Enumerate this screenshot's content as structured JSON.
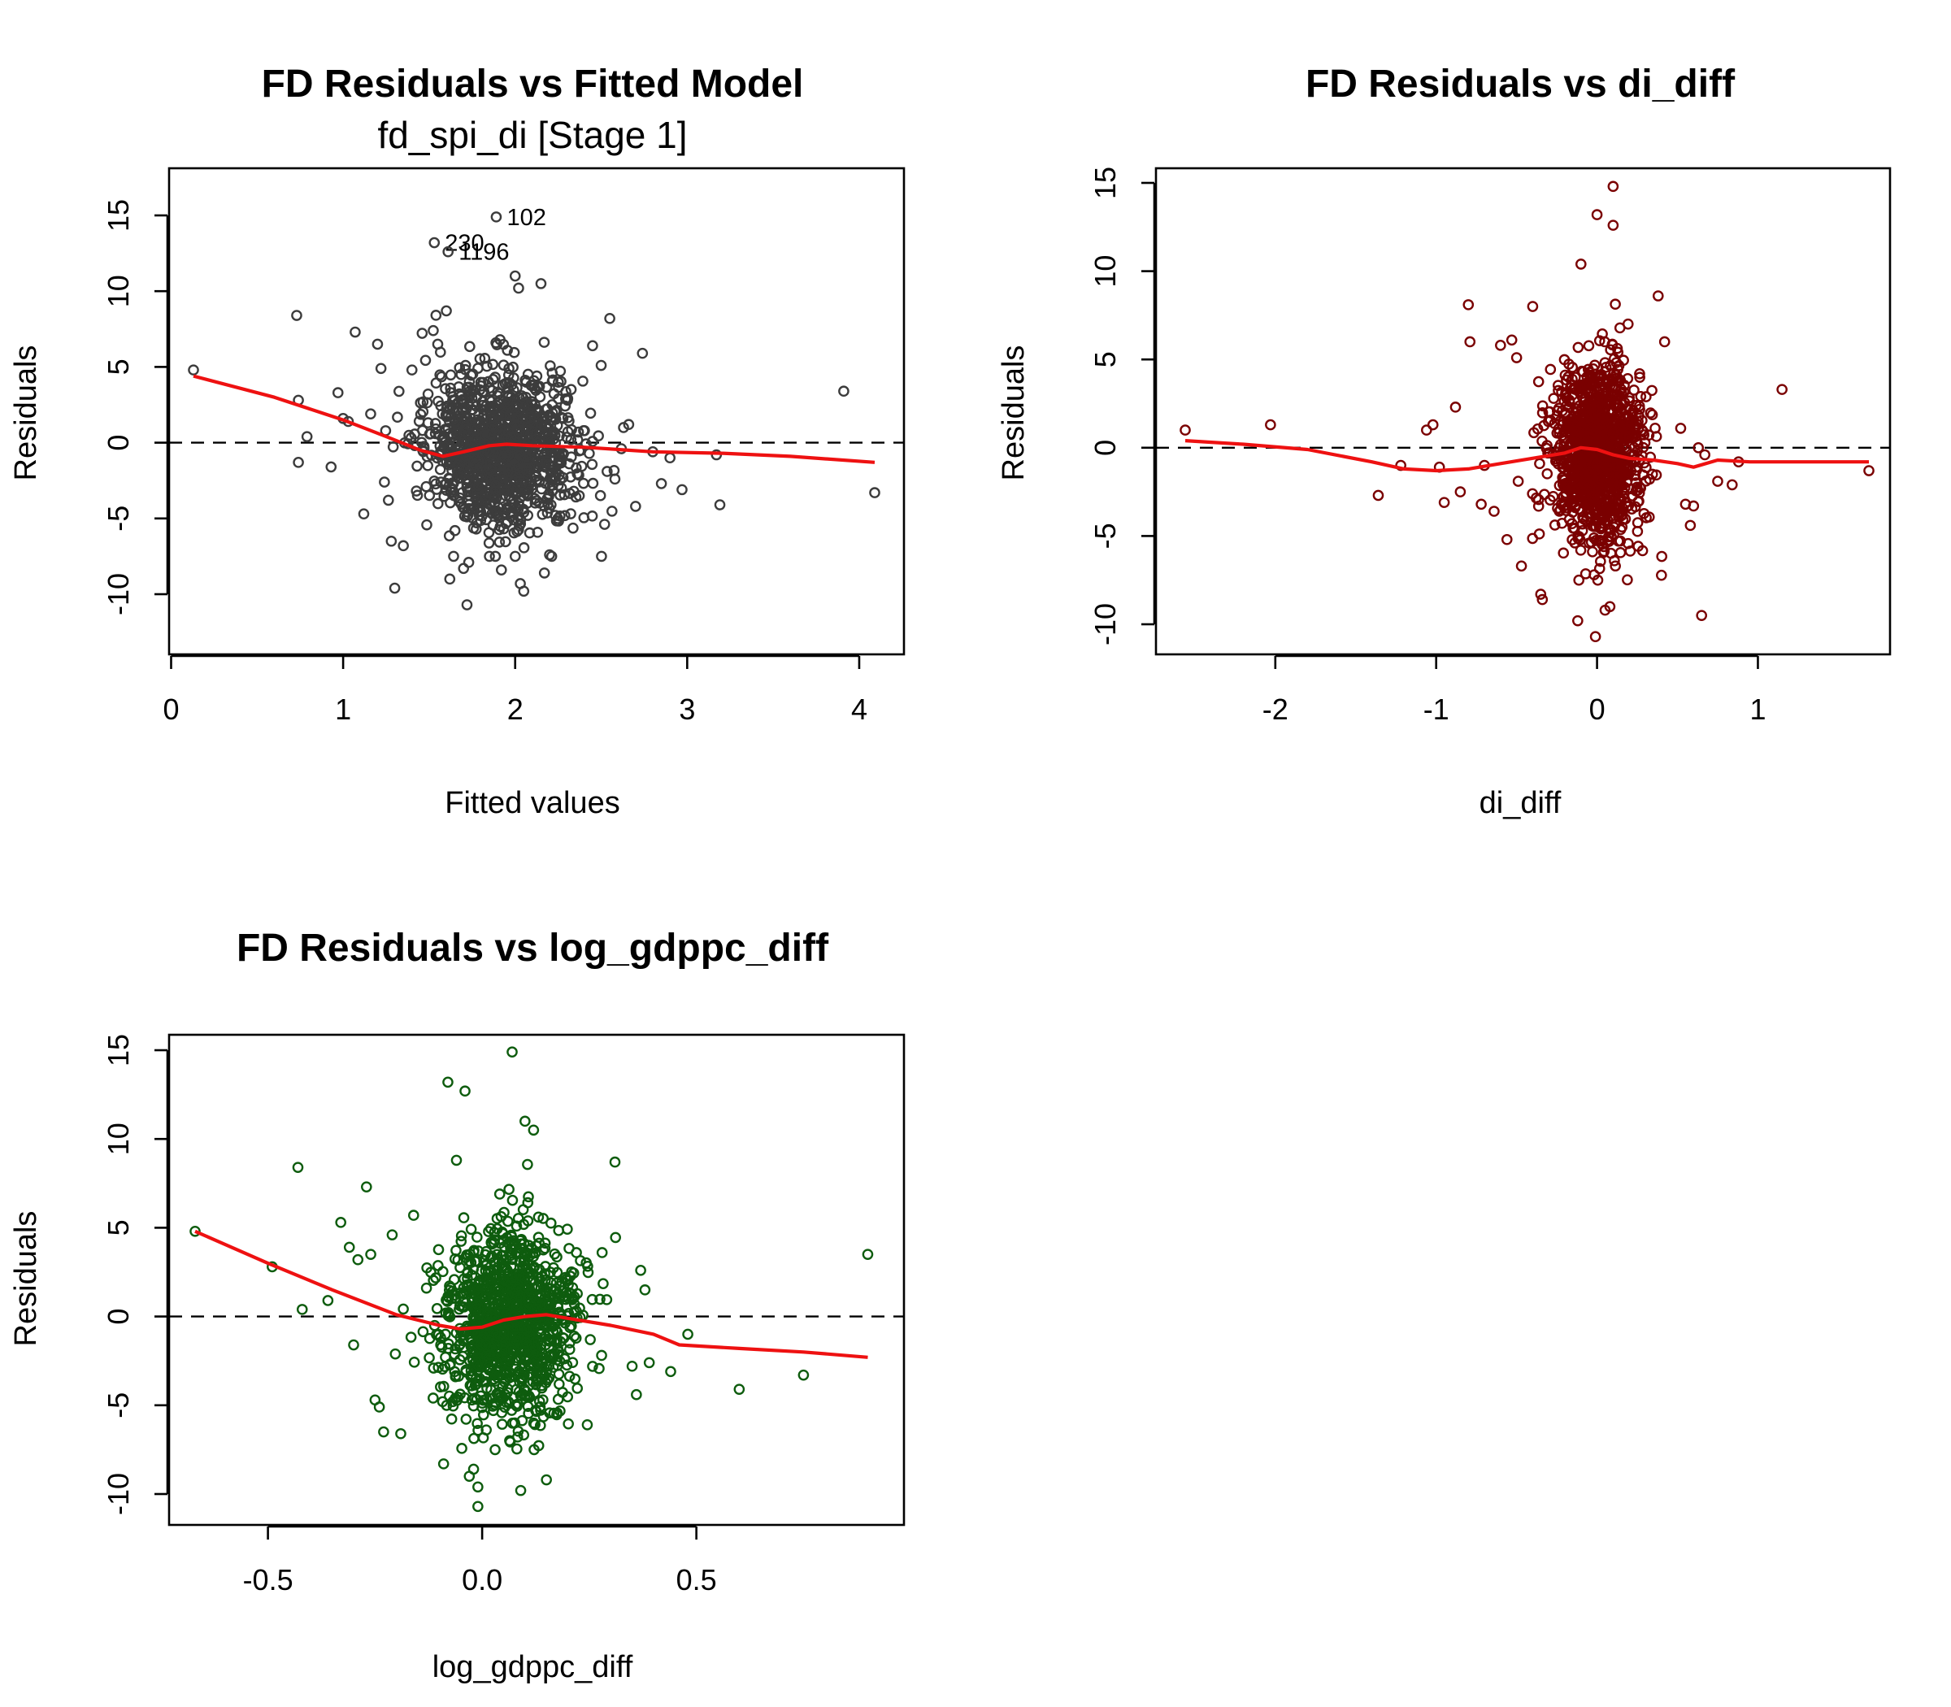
{
  "chart_data": [
    {
      "id": "p1",
      "type": "scatter",
      "title": "FD Residuals vs Fitted Model",
      "subtitle": "fd_spi_di [Stage 1]",
      "xlabel": "Fitted values",
      "ylabel": "Residuals",
      "xlim": [
        0,
        4
      ],
      "ylim": [
        -10,
        15
      ],
      "xticks": [
        0,
        1,
        2,
        3,
        4
      ],
      "yticks": [
        -10,
        -5,
        0,
        5,
        10,
        15
      ],
      "point_color": "#3c3c3c",
      "smooth_color": "#ee1111",
      "reference_line": 0,
      "cluster": {
        "x_mean": 1.92,
        "x_sd": 0.22,
        "y_mean": -0.4,
        "y_sd": 2.6,
        "n": 1150
      },
      "points": [
        {
          "x": 0.13,
          "y": 4.8
        },
        {
          "x": 0.73,
          "y": 8.4
        },
        {
          "x": 0.74,
          "y": 2.8
        },
        {
          "x": 0.74,
          "y": -1.3
        },
        {
          "x": 0.79,
          "y": 0.4
        },
        {
          "x": 0.93,
          "y": -1.6
        },
        {
          "x": 0.97,
          "y": 3.3
        },
        {
          "x": 1.0,
          "y": 1.6
        },
        {
          "x": 1.03,
          "y": 1.4
        },
        {
          "x": 1.07,
          "y": 7.3
        },
        {
          "x": 1.12,
          "y": -4.7
        },
        {
          "x": 1.16,
          "y": 1.9
        },
        {
          "x": 1.2,
          "y": 6.5
        },
        {
          "x": 1.22,
          "y": 4.9
        },
        {
          "x": 1.24,
          "y": -2.6
        },
        {
          "x": 1.28,
          "y": -6.5
        },
        {
          "x": 1.3,
          "y": -9.6
        },
        {
          "x": 1.35,
          "y": -6.8
        },
        {
          "x": 1.4,
          "y": 4.8
        },
        {
          "x": 1.55,
          "y": 6.5
        },
        {
          "x": 1.6,
          "y": 8.7
        },
        {
          "x": 1.62,
          "y": -9.0
        },
        {
          "x": 1.7,
          "y": -8.3
        },
        {
          "x": 1.73,
          "y": -7.9
        },
        {
          "x": 1.72,
          "y": -10.7
        },
        {
          "x": 1.92,
          "y": -8.4
        },
        {
          "x": 2.0,
          "y": 11.0
        },
        {
          "x": 2.02,
          "y": 10.2
        },
        {
          "x": 2.03,
          "y": -9.3
        },
        {
          "x": 2.05,
          "y": -9.8
        },
        {
          "x": 2.15,
          "y": 10.5
        },
        {
          "x": 2.17,
          "y": -8.6
        },
        {
          "x": 2.2,
          "y": -7.4
        },
        {
          "x": 2.45,
          "y": 6.4
        },
        {
          "x": 2.5,
          "y": 5.1
        },
        {
          "x": 2.55,
          "y": 8.2
        },
        {
          "x": 2.58,
          "y": -2.4
        },
        {
          "x": 2.63,
          "y": 1.0
        },
        {
          "x": 2.66,
          "y": 1.2
        },
        {
          "x": 2.7,
          "y": -4.2
        },
        {
          "x": 2.74,
          "y": 5.9
        },
        {
          "x": 2.8,
          "y": -0.6
        },
        {
          "x": 2.85,
          "y": -2.7
        },
        {
          "x": 2.9,
          "y": -1.0
        },
        {
          "x": 2.97,
          "y": -3.1
        },
        {
          "x": 3.17,
          "y": -0.8
        },
        {
          "x": 3.19,
          "y": -4.1
        },
        {
          "x": 3.91,
          "y": 3.4
        },
        {
          "x": 4.09,
          "y": -3.3
        }
      ],
      "labelled_points": [
        {
          "x": 1.89,
          "y": 14.9,
          "label": "102"
        },
        {
          "x": 1.53,
          "y": 13.2,
          "label": "230"
        },
        {
          "x": 1.61,
          "y": 12.6,
          "label": "1196"
        }
      ],
      "smooth": {
        "x": [
          0.13,
          0.6,
          1.0,
          1.25,
          1.45,
          1.58,
          1.7,
          1.85,
          1.95,
          2.1,
          2.4,
          2.8,
          3.2,
          3.6,
          4.09
        ],
        "y": [
          4.4,
          3.0,
          1.5,
          0.4,
          -0.5,
          -0.9,
          -0.6,
          -0.2,
          -0.1,
          -0.2,
          -0.3,
          -0.6,
          -0.7,
          -0.9,
          -1.3
        ]
      }
    },
    {
      "id": "p2",
      "type": "scatter",
      "title": "FD Residuals vs di_diff",
      "xlabel": "di_diff",
      "ylabel": "Residuals",
      "xlim": [
        -2.6,
        1.7
      ],
      "ylim": [
        -10,
        15
      ],
      "xticks": [
        -2,
        -1,
        0,
        1
      ],
      "yticks": [
        -10,
        -5,
        0,
        5,
        10,
        15
      ],
      "point_color": "#7a0000",
      "smooth_color": "#ee1111",
      "reference_line": 0,
      "cluster": {
        "x_mean": 0.0,
        "x_sd": 0.14,
        "y_mean": -0.4,
        "y_sd": 2.6,
        "n": 1150
      },
      "points": [
        {
          "x": -2.56,
          "y": 1.0
        },
        {
          "x": -2.03,
          "y": 1.3
        },
        {
          "x": -1.36,
          "y": -2.7
        },
        {
          "x": -1.22,
          "y": -1.0
        },
        {
          "x": -1.06,
          "y": 1.0
        },
        {
          "x": -1.02,
          "y": 1.3
        },
        {
          "x": -0.98,
          "y": -1.1
        },
        {
          "x": -0.95,
          "y": -3.1
        },
        {
          "x": -0.88,
          "y": 2.3
        },
        {
          "x": -0.85,
          "y": -2.5
        },
        {
          "x": -0.8,
          "y": 8.1
        },
        {
          "x": -0.79,
          "y": 6.0
        },
        {
          "x": -0.72,
          "y": -3.2
        },
        {
          "x": -0.7,
          "y": -1.0
        },
        {
          "x": -0.64,
          "y": -3.6
        },
        {
          "x": -0.6,
          "y": 5.8
        },
        {
          "x": -0.56,
          "y": -5.2
        },
        {
          "x": -0.53,
          "y": 6.1
        },
        {
          "x": -0.5,
          "y": 5.1
        },
        {
          "x": -0.49,
          "y": -1.9
        },
        {
          "x": -0.47,
          "y": -6.7
        },
        {
          "x": -0.4,
          "y": 8.0
        },
        {
          "x": -0.35,
          "y": -8.3
        },
        {
          "x": -0.34,
          "y": -8.6
        },
        {
          "x": -0.12,
          "y": -9.8
        },
        {
          "x": -0.1,
          "y": 10.4
        },
        {
          "x": 0.0,
          "y": 13.2
        },
        {
          "x": -0.01,
          "y": -10.7
        },
        {
          "x": 0.1,
          "y": 14.8
        },
        {
          "x": 0.1,
          "y": 12.6
        },
        {
          "x": 0.08,
          "y": -9.0
        },
        {
          "x": 0.05,
          "y": -9.2
        },
        {
          "x": 0.38,
          "y": 8.6
        },
        {
          "x": 0.42,
          "y": 6.0
        },
        {
          "x": 0.52,
          "y": 1.1
        },
        {
          "x": 0.55,
          "y": -3.2
        },
        {
          "x": 0.58,
          "y": -4.4
        },
        {
          "x": 0.6,
          "y": -3.3
        },
        {
          "x": 0.63,
          "y": 0.0
        },
        {
          "x": 0.65,
          "y": -9.5
        },
        {
          "x": 0.67,
          "y": -0.4
        },
        {
          "x": 0.75,
          "y": -1.9
        },
        {
          "x": 0.84,
          "y": -2.1
        },
        {
          "x": 0.88,
          "y": -0.8
        },
        {
          "x": 1.15,
          "y": 3.3
        },
        {
          "x": 1.69,
          "y": -1.3
        }
      ],
      "smooth": {
        "x": [
          -2.56,
          -2.2,
          -1.8,
          -1.4,
          -1.2,
          -1.0,
          -0.8,
          -0.6,
          -0.4,
          -0.2,
          -0.1,
          0.0,
          0.1,
          0.2,
          0.35,
          0.5,
          0.6,
          0.75,
          0.95,
          1.2,
          1.69
        ],
        "y": [
          0.4,
          0.2,
          -0.1,
          -0.8,
          -1.2,
          -1.3,
          -1.2,
          -0.9,
          -0.6,
          -0.3,
          0.0,
          -0.1,
          -0.4,
          -0.6,
          -0.7,
          -0.9,
          -1.1,
          -0.7,
          -0.8,
          -0.8,
          -0.8
        ]
      }
    },
    {
      "id": "p3",
      "type": "scatter",
      "title": "FD Residuals vs log_gdppc_diff",
      "xlabel": "log_gdppc_diff",
      "ylabel": "Residuals",
      "xlim": [
        -0.68,
        0.92
      ],
      "ylim": [
        -10,
        15
      ],
      "xticks": [
        -0.5,
        0.0,
        0.5
      ],
      "yticks": [
        -10,
        -5,
        0,
        5,
        10,
        15
      ],
      "point_color": "#0e5c0e",
      "smooth_color": "#ee1111",
      "reference_line": 0,
      "cluster": {
        "x_mean": 0.06,
        "x_sd": 0.08,
        "y_mean": -0.4,
        "y_sd": 2.6,
        "n": 1150
      },
      "points": [
        {
          "x": -0.67,
          "y": 4.8
        },
        {
          "x": -0.49,
          "y": 2.8
        },
        {
          "x": -0.43,
          "y": 8.4
        },
        {
          "x": -0.42,
          "y": 0.4
        },
        {
          "x": -0.36,
          "y": 0.9
        },
        {
          "x": -0.33,
          "y": 5.3
        },
        {
          "x": -0.31,
          "y": 3.9
        },
        {
          "x": -0.3,
          "y": -1.6
        },
        {
          "x": -0.29,
          "y": 3.2
        },
        {
          "x": -0.27,
          "y": 7.3
        },
        {
          "x": -0.26,
          "y": 3.5
        },
        {
          "x": -0.25,
          "y": -4.7
        },
        {
          "x": -0.24,
          "y": -5.1
        },
        {
          "x": -0.23,
          "y": -6.5
        },
        {
          "x": -0.21,
          "y": 4.6
        },
        {
          "x": -0.19,
          "y": -6.6
        },
        {
          "x": -0.16,
          "y": 5.7
        },
        {
          "x": -0.13,
          "y": 1.6
        },
        {
          "x": -0.08,
          "y": 13.2
        },
        {
          "x": -0.06,
          "y": 8.8
        },
        {
          "x": -0.04,
          "y": 12.7
        },
        {
          "x": -0.02,
          "y": -8.6
        },
        {
          "x": -0.09,
          "y": -8.3
        },
        {
          "x": -0.03,
          "y": -9.0
        },
        {
          "x": -0.01,
          "y": -9.6
        },
        {
          "x": -0.01,
          "y": -10.7
        },
        {
          "x": 0.07,
          "y": 14.9
        },
        {
          "x": 0.1,
          "y": 11.0
        },
        {
          "x": 0.12,
          "y": 10.5
        },
        {
          "x": 0.09,
          "y": -9.8
        },
        {
          "x": 0.15,
          "y": -9.2
        },
        {
          "x": 0.22,
          "y": 3.6
        },
        {
          "x": 0.28,
          "y": 3.6
        },
        {
          "x": 0.31,
          "y": 8.7
        },
        {
          "x": 0.35,
          "y": -2.8
        },
        {
          "x": 0.36,
          "y": -4.4
        },
        {
          "x": 0.37,
          "y": 2.6
        },
        {
          "x": 0.38,
          "y": 1.5
        },
        {
          "x": 0.39,
          "y": -2.6
        },
        {
          "x": 0.44,
          "y": -3.1
        },
        {
          "x": 0.48,
          "y": -1.0
        },
        {
          "x": 0.6,
          "y": -4.1
        },
        {
          "x": 0.75,
          "y": -3.3
        },
        {
          "x": 0.9,
          "y": 3.5
        }
      ],
      "smooth": {
        "x": [
          -0.67,
          -0.5,
          -0.35,
          -0.2,
          -0.1,
          -0.05,
          0.0,
          0.05,
          0.1,
          0.15,
          0.2,
          0.3,
          0.4,
          0.46,
          0.6,
          0.75,
          0.9
        ],
        "y": [
          4.8,
          3.0,
          1.5,
          0.1,
          -0.5,
          -0.7,
          -0.6,
          -0.2,
          0.0,
          0.1,
          -0.1,
          -0.5,
          -1.0,
          -1.6,
          -1.8,
          -2.0,
          -2.3
        ]
      }
    }
  ]
}
